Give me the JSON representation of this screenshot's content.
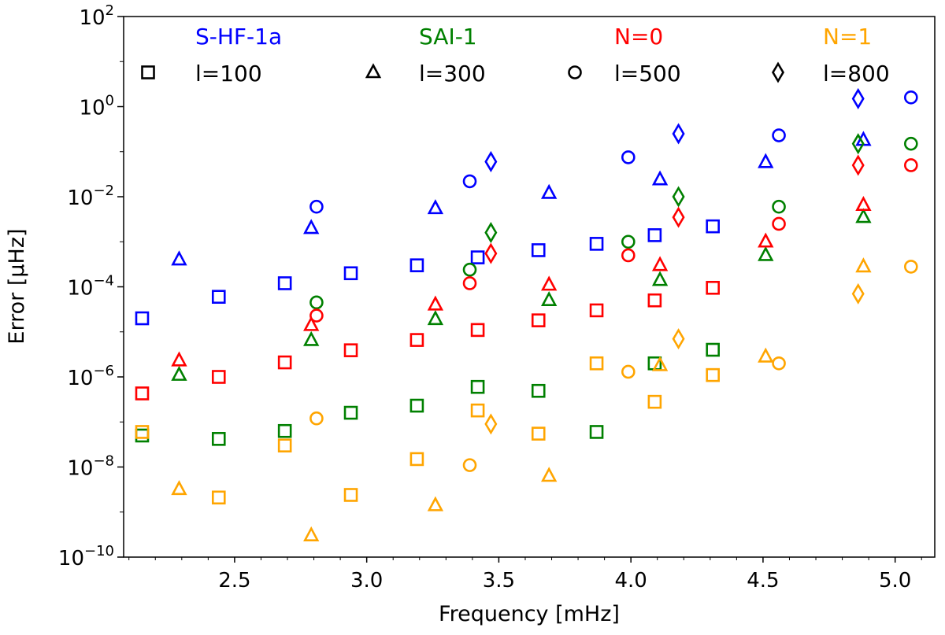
{
  "chart_data": {
    "type": "scatter",
    "title": "",
    "xlabel": "Frequency [mHz]",
    "ylabel": "Error [μHz]",
    "xlim": [
      2.08,
      5.15
    ],
    "ylim_log10": [
      -10,
      2
    ],
    "yscale": "log",
    "x_ticks": [
      {
        "value": 2.5,
        "label": "2.5"
      },
      {
        "value": 3.0,
        "label": "3.0"
      },
      {
        "value": 3.5,
        "label": "3.5"
      },
      {
        "value": 4.0,
        "label": "4.0"
      },
      {
        "value": 4.5,
        "label": "4.5"
      },
      {
        "value": 5.0,
        "label": "5.0"
      }
    ],
    "y_ticks": [
      {
        "exp": -10,
        "base": "10",
        "sup": "−10"
      },
      {
        "exp": -8,
        "base": "10",
        "sup": "−8"
      },
      {
        "exp": -6,
        "base": "10",
        "sup": "−6"
      },
      {
        "exp": -4,
        "base": "10",
        "sup": "−4"
      },
      {
        "exp": -2,
        "base": "10",
        "sup": "−2"
      },
      {
        "exp": 0,
        "base": "10",
        "sup": "0"
      },
      {
        "exp": 2,
        "base": "10",
        "sup": "2"
      }
    ],
    "methods": [
      {
        "key": "shf",
        "name": "S-HF-1a",
        "color": "#0000ff"
      },
      {
        "key": "sai",
        "name": "SAI-1",
        "color": "#008000"
      },
      {
        "key": "n0",
        "name": "N=0",
        "color": "#ff0000"
      },
      {
        "key": "n1",
        "name": "N=1",
        "color": "#ffa500"
      }
    ],
    "degrees": [
      {
        "key": "l100",
        "name": "l=100",
        "marker": "square"
      },
      {
        "key": "l300",
        "name": "l=300",
        "marker": "triangle"
      },
      {
        "key": "l500",
        "name": "l=500",
        "marker": "circle"
      },
      {
        "key": "l800",
        "name": "l=800",
        "marker": "diamond"
      }
    ],
    "series": [
      {
        "method": "shf",
        "degree": "l100",
        "x": [
          2.15,
          2.44,
          2.69,
          2.94,
          3.19,
          3.42,
          3.65,
          3.87,
          4.09,
          4.31
        ],
        "y": [
          2e-05,
          6e-05,
          0.00012,
          0.0002,
          0.0003,
          0.00045,
          0.00065,
          0.0009,
          0.0014,
          0.0022
        ]
      },
      {
        "method": "shf",
        "degree": "l300",
        "x": [
          2.29,
          2.79,
          3.26,
          3.69,
          4.11,
          4.51,
          4.88
        ],
        "y": [
          0.0004,
          0.002,
          0.0055,
          0.012,
          0.024,
          0.058,
          0.18
        ]
      },
      {
        "method": "shf",
        "degree": "l500",
        "x": [
          2.81,
          3.39,
          3.99,
          4.56,
          5.06
        ],
        "y": [
          0.006,
          0.022,
          0.075,
          0.23,
          1.6
        ]
      },
      {
        "method": "shf",
        "degree": "l800",
        "x": [
          3.47,
          4.18,
          4.86
        ],
        "y": [
          0.06,
          0.25,
          1.5
        ]
      },
      {
        "method": "sai",
        "degree": "l100",
        "x": [
          2.15,
          2.44,
          2.69,
          2.94,
          3.19,
          3.42,
          3.65,
          3.87,
          4.09,
          4.31
        ],
        "y": [
          5e-08,
          4.2e-08,
          6.3e-08,
          1.6e-07,
          2.3e-07,
          6e-07,
          4.9e-07,
          6e-08,
          2e-06,
          4e-06
        ]
      },
      {
        "method": "sai",
        "degree": "l300",
        "x": [
          2.29,
          2.79,
          3.26,
          3.69,
          4.11,
          4.51,
          4.88
        ],
        "y": [
          1.1e-06,
          6.5e-06,
          1.9e-05,
          5e-05,
          0.00014,
          0.0005,
          0.0035
        ]
      },
      {
        "method": "sai",
        "degree": "l500",
        "x": [
          2.81,
          3.39,
          3.99,
          4.56,
          5.06
        ],
        "y": [
          4.5e-05,
          0.00024,
          0.001,
          0.006,
          0.15
        ]
      },
      {
        "method": "sai",
        "degree": "l800",
        "x": [
          3.47,
          4.18,
          4.86
        ],
        "y": [
          0.0016,
          0.01,
          0.15
        ]
      },
      {
        "method": "n0",
        "degree": "l100",
        "x": [
          2.15,
          2.44,
          2.69,
          2.94,
          3.19,
          3.42,
          3.65,
          3.87,
          4.09,
          4.31
        ],
        "y": [
          4.3e-07,
          1e-06,
          2.1e-06,
          3.9e-06,
          6.6e-06,
          1.1e-05,
          1.8e-05,
          3e-05,
          5e-05,
          9.5e-05
        ]
      },
      {
        "method": "n0",
        "degree": "l300",
        "x": [
          2.29,
          2.79,
          3.26,
          3.69,
          4.11,
          4.51,
          4.88
        ],
        "y": [
          2.3e-06,
          1.4e-05,
          4e-05,
          0.00011,
          0.0003,
          0.001,
          0.0065
        ]
      },
      {
        "method": "n0",
        "degree": "l500",
        "x": [
          2.81,
          3.39,
          3.99,
          4.56,
          5.06
        ],
        "y": [
          2.3e-05,
          0.00012,
          0.0005,
          0.0025,
          0.05
        ]
      },
      {
        "method": "n0",
        "degree": "l800",
        "x": [
          3.47,
          4.18,
          4.86
        ],
        "y": [
          0.00055,
          0.0035,
          0.05
        ]
      },
      {
        "method": "n1",
        "degree": "l100",
        "x": [
          2.15,
          2.44,
          2.69,
          2.94,
          3.19,
          3.42,
          3.65,
          3.87,
          4.09,
          4.31
        ],
        "y": [
          6e-08,
          2.1e-09,
          3e-08,
          2.4e-09,
          1.5e-08,
          1.8e-07,
          5.5e-08,
          2e-06,
          2.8e-07,
          1.1e-06
        ]
      },
      {
        "method": "n1",
        "degree": "l300",
        "x": [
          2.29,
          2.79,
          3.26,
          3.69,
          4.11,
          4.51,
          4.88
        ],
        "y": [
          3.2e-09,
          3e-10,
          1.4e-09,
          6.3e-09,
          1.8e-06,
          2.8e-06,
          0.00028
        ]
      },
      {
        "method": "n1",
        "degree": "l500",
        "x": [
          2.81,
          3.39,
          3.99,
          4.56,
          5.06
        ],
        "y": [
          1.2e-07,
          1.1e-08,
          1.3e-06,
          2e-06,
          0.00028
        ]
      },
      {
        "method": "n1",
        "degree": "l800",
        "x": [
          3.47,
          4.18,
          4.86
        ],
        "y": [
          9e-08,
          7e-06,
          7e-05
        ]
      }
    ]
  }
}
